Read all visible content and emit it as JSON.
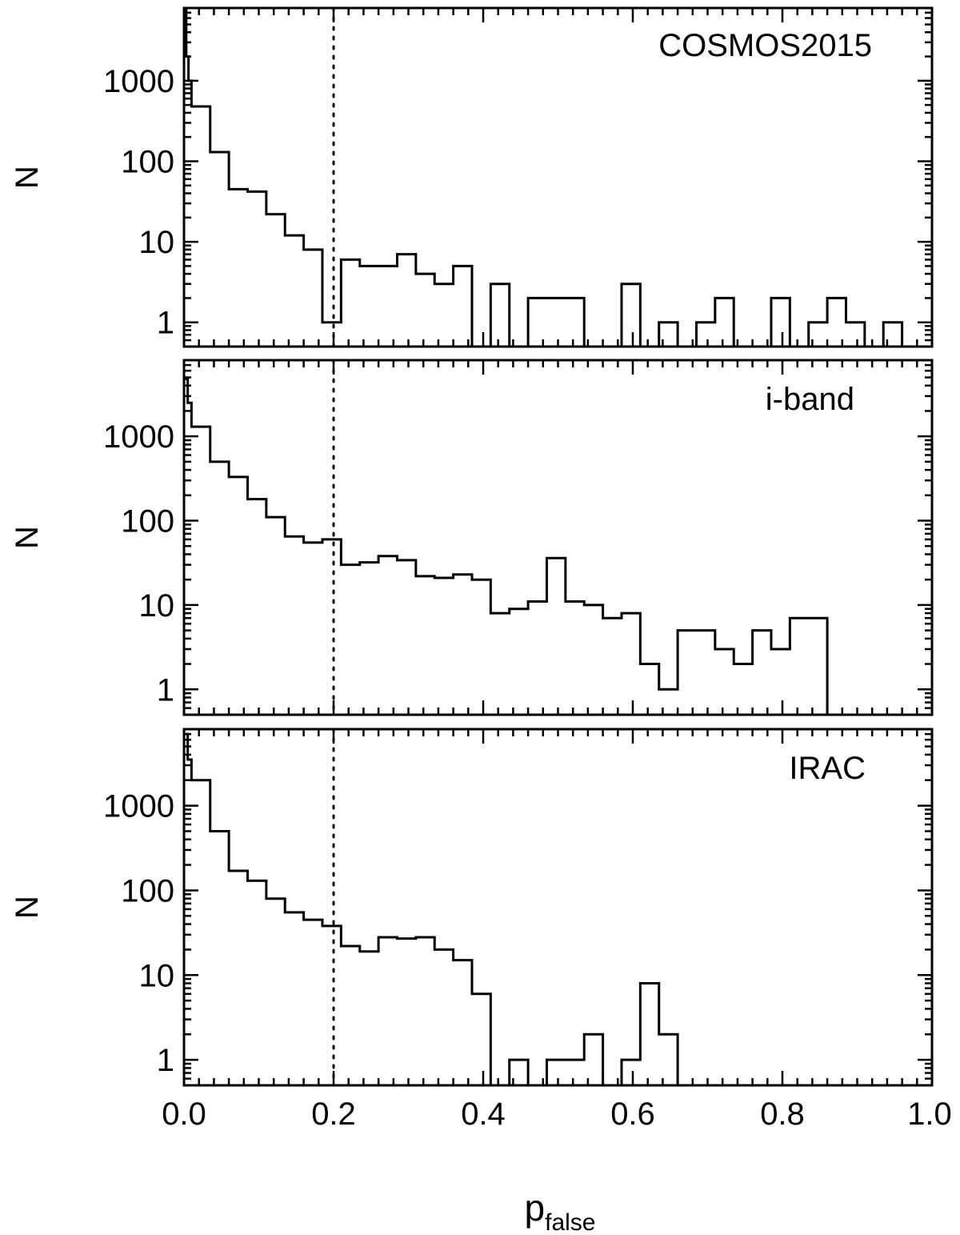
{
  "figure": {
    "xlabel_main": "p",
    "xlabel_sub": "false"
  },
  "chart_data": [
    {
      "type": "histogram",
      "panel_label": "COSMOS2015",
      "ylabel": "N",
      "yscale": "log",
      "ylim": [
        0.5,
        8000
      ],
      "xlim": [
        0.0,
        1.0
      ],
      "x_ticks": [
        "0.0",
        "0.2",
        "0.4",
        "0.6",
        "0.8",
        "1.0"
      ],
      "y_ticks": [
        "1",
        "10",
        "100",
        "1000"
      ],
      "y_tick_values": [
        1,
        10,
        100,
        1000
      ],
      "threshold_line_x": 0.2,
      "bin_width": 0.025,
      "bin_starts": [
        0.0,
        0.003,
        0.006,
        0.01,
        0.035,
        0.06,
        0.085,
        0.11,
        0.135,
        0.16,
        0.185,
        0.21,
        0.235,
        0.26,
        0.285,
        0.31,
        0.335,
        0.36,
        0.385,
        0.41,
        0.435,
        0.46,
        0.485,
        0.51,
        0.535,
        0.56,
        0.585,
        0.61,
        0.635,
        0.66,
        0.685,
        0.71,
        0.735,
        0.76,
        0.785,
        0.81,
        0.835,
        0.86,
        0.885,
        0.91,
        0.935,
        0.96,
        0.985
      ],
      "bin_ends": [
        0.003,
        0.006,
        0.01,
        0.035,
        0.06,
        0.085,
        0.11,
        0.135,
        0.16,
        0.185,
        0.21,
        0.235,
        0.26,
        0.285,
        0.31,
        0.335,
        0.36,
        0.385,
        0.41,
        0.435,
        0.46,
        0.485,
        0.51,
        0.535,
        0.56,
        0.585,
        0.61,
        0.635,
        0.66,
        0.685,
        0.71,
        0.735,
        0.76,
        0.785,
        0.81,
        0.835,
        0.86,
        0.885,
        0.91,
        0.935,
        0.96,
        0.985,
        1.0
      ],
      "counts": [
        8000,
        2000,
        1000,
        480,
        130,
        45,
        42,
        22,
        12,
        8,
        1,
        6,
        5,
        5,
        7,
        4,
        3,
        5,
        0,
        3,
        0,
        2,
        2,
        2,
        0,
        0,
        3,
        0,
        1,
        0,
        1,
        2,
        0,
        0,
        2,
        0,
        1,
        2,
        1,
        0,
        1,
        0,
        0
      ]
    },
    {
      "type": "histogram",
      "panel_label": "i-band",
      "ylabel": "N",
      "yscale": "log",
      "ylim": [
        0.5,
        8000
      ],
      "xlim": [
        0.0,
        1.0
      ],
      "x_ticks": [
        "0.0",
        "0.2",
        "0.4",
        "0.6",
        "0.8",
        "1.0"
      ],
      "y_ticks": [
        "1",
        "10",
        "100",
        "1000"
      ],
      "y_tick_values": [
        1,
        10,
        100,
        1000
      ],
      "threshold_line_x": 0.2,
      "bin_width": 0.025,
      "bin_starts": [
        0.0,
        0.005,
        0.01,
        0.035,
        0.06,
        0.085,
        0.11,
        0.135,
        0.16,
        0.185,
        0.21,
        0.235,
        0.26,
        0.285,
        0.31,
        0.335,
        0.36,
        0.385,
        0.41,
        0.435,
        0.46,
        0.485,
        0.51,
        0.535,
        0.56,
        0.585,
        0.61,
        0.635,
        0.66,
        0.685,
        0.71,
        0.735,
        0.76,
        0.785,
        0.81,
        0.835,
        0.86,
        0.885
      ],
      "bin_ends": [
        0.005,
        0.01,
        0.035,
        0.06,
        0.085,
        0.11,
        0.135,
        0.16,
        0.185,
        0.21,
        0.235,
        0.26,
        0.285,
        0.31,
        0.335,
        0.36,
        0.385,
        0.41,
        0.435,
        0.46,
        0.485,
        0.51,
        0.535,
        0.56,
        0.585,
        0.61,
        0.635,
        0.66,
        0.685,
        0.71,
        0.735,
        0.76,
        0.785,
        0.81,
        0.835,
        0.86,
        0.885,
        1.0
      ],
      "counts": [
        4800,
        2500,
        1300,
        500,
        330,
        180,
        110,
        65,
        55,
        60,
        30,
        32,
        38,
        34,
        22,
        21,
        23,
        20,
        8,
        9,
        11,
        36,
        11,
        10,
        7,
        8,
        2,
        1,
        5,
        5,
        3,
        2,
        5,
        3,
        7,
        7,
        0,
        0
      ]
    },
    {
      "type": "histogram",
      "panel_label": "IRAC",
      "ylabel": "N",
      "yscale": "log",
      "ylim": [
        0.5,
        8000
      ],
      "xlim": [
        0.0,
        1.0
      ],
      "x_ticks": [
        "0.0",
        "0.2",
        "0.4",
        "0.6",
        "0.8",
        "1.0"
      ],
      "y_ticks": [
        "1",
        "10",
        "100",
        "1000"
      ],
      "y_tick_values": [
        1,
        10,
        100,
        1000
      ],
      "threshold_line_x": 0.2,
      "bin_width": 0.025,
      "bin_starts": [
        0.0,
        0.005,
        0.01,
        0.035,
        0.06,
        0.085,
        0.11,
        0.135,
        0.16,
        0.185,
        0.21,
        0.235,
        0.26,
        0.285,
        0.31,
        0.335,
        0.36,
        0.385,
        0.41,
        0.435,
        0.46,
        0.485,
        0.51,
        0.535,
        0.56,
        0.585,
        0.61,
        0.635,
        0.66,
        0.685
      ],
      "bin_ends": [
        0.005,
        0.01,
        0.035,
        0.06,
        0.085,
        0.11,
        0.135,
        0.16,
        0.185,
        0.21,
        0.235,
        0.26,
        0.285,
        0.31,
        0.335,
        0.36,
        0.385,
        0.41,
        0.435,
        0.46,
        0.485,
        0.51,
        0.535,
        0.56,
        0.585,
        0.61,
        0.635,
        0.66,
        0.685,
        1.0
      ],
      "counts": [
        7000,
        3500,
        2000,
        500,
        170,
        130,
        80,
        55,
        45,
        38,
        22,
        19,
        28,
        27,
        28,
        20,
        15,
        6,
        0,
        1,
        0,
        1,
        1,
        2,
        0,
        1,
        8,
        2,
        0,
        0
      ]
    }
  ]
}
